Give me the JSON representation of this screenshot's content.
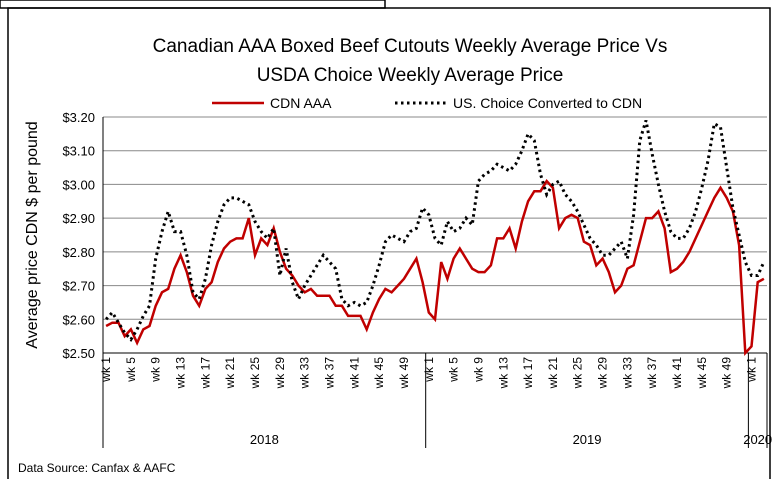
{
  "chart_data": {
    "type": "line",
    "title": [
      "Canadian AAA Boxed Beef Cutouts Weekly Average Price Vs",
      "USDA Choice Weekly Average Price"
    ],
    "y_label": "Average price CDN $ per pound",
    "source": "Data Source: Canfax & AAFC",
    "groups": [
      "2018",
      "2019",
      "2020"
    ],
    "categories": [
      "wk 1",
      null,
      null,
      null,
      "wk 5",
      null,
      null,
      null,
      "wk 9",
      null,
      null,
      null,
      "wk 13",
      null,
      null,
      null,
      "wk 17",
      null,
      null,
      null,
      "wk 21",
      null,
      null,
      null,
      "wk 25",
      null,
      null,
      null,
      "wk 29",
      null,
      null,
      null,
      "wk 33",
      null,
      null,
      null,
      "wk 37",
      null,
      null,
      null,
      "wk 41",
      null,
      null,
      null,
      "wk 45",
      null,
      null,
      null,
      "wk 49",
      null,
      null,
      null,
      "wk 1",
      null,
      null,
      null,
      "wk 5",
      null,
      null,
      null,
      "wk 9",
      null,
      null,
      null,
      "wk 13",
      null,
      null,
      null,
      "wk 17",
      null,
      null,
      null,
      "wk 21",
      null,
      null,
      null,
      "wk 25",
      null,
      null,
      null,
      "wk 29",
      null,
      null,
      null,
      "wk 33",
      null,
      null,
      null,
      "wk 37",
      null,
      null,
      null,
      "wk 41",
      null,
      null,
      null,
      "wk 45",
      null,
      null,
      null,
      "wk 49",
      null,
      null,
      null,
      "wk 1",
      null,
      null
    ],
    "series": [
      {
        "name": "CDN AAA",
        "color": "#c00000",
        "style": "solid",
        "values": [
          2.58,
          2.59,
          2.59,
          2.55,
          2.57,
          2.53,
          2.57,
          2.58,
          2.64,
          2.68,
          2.69,
          2.75,
          2.79,
          2.74,
          2.67,
          2.64,
          2.69,
          2.71,
          2.77,
          2.81,
          2.83,
          2.84,
          2.84,
          2.9,
          2.79,
          2.84,
          2.82,
          2.87,
          2.8,
          2.75,
          2.73,
          2.7,
          2.68,
          2.69,
          2.67,
          2.67,
          2.67,
          2.64,
          2.64,
          2.61,
          2.61,
          2.61,
          2.57,
          2.62,
          2.66,
          2.69,
          2.68,
          2.7,
          2.72,
          2.75,
          2.78,
          2.71,
          2.62,
          2.6,
          2.77,
          2.72,
          2.78,
          2.81,
          2.78,
          2.75,
          2.74,
          2.74,
          2.76,
          2.84,
          2.84,
          2.87,
          2.81,
          2.89,
          2.95,
          2.98,
          2.98,
          3.01,
          2.99,
          2.87,
          2.9,
          2.91,
          2.9,
          2.83,
          2.82,
          2.76,
          2.78,
          2.74,
          2.68,
          2.7,
          2.75,
          2.76,
          2.83,
          2.9,
          2.9,
          2.92,
          2.87,
          2.74,
          2.75,
          2.77,
          2.8,
          2.84,
          2.88,
          2.92,
          2.96,
          2.99,
          2.96,
          2.92,
          2.82,
          2.5,
          2.52,
          2.71,
          2.72
        ]
      },
      {
        "name": "US. Choice Converted to CDN",
        "color": "#000000",
        "style": "dotted",
        "values": [
          2.6,
          2.62,
          2.59,
          2.56,
          2.54,
          2.57,
          2.61,
          2.64,
          2.78,
          2.86,
          2.92,
          2.86,
          2.86,
          2.79,
          2.68,
          2.66,
          2.72,
          2.82,
          2.89,
          2.94,
          2.96,
          2.96,
          2.95,
          2.94,
          2.89,
          2.86,
          2.84,
          2.87,
          2.73,
          2.81,
          2.71,
          2.66,
          2.7,
          2.73,
          2.76,
          2.79,
          2.77,
          2.75,
          2.66,
          2.64,
          2.65,
          2.64,
          2.65,
          2.7,
          2.76,
          2.83,
          2.85,
          2.84,
          2.83,
          2.86,
          2.87,
          2.93,
          2.91,
          2.84,
          2.82,
          2.89,
          2.86,
          2.87,
          2.9,
          2.88,
          3.01,
          3.03,
          3.04,
          3.06,
          3.05,
          3.04,
          3.06,
          3.1,
          3.15,
          3.13,
          3.03,
          2.97,
          3.0,
          3.01,
          2.97,
          2.95,
          2.92,
          2.88,
          2.84,
          2.82,
          2.79,
          2.79,
          2.81,
          2.83,
          2.78,
          2.91,
          3.13,
          3.19,
          3.09,
          3.0,
          2.92,
          2.86,
          2.84,
          2.84,
          2.87,
          2.92,
          2.99,
          3.07,
          3.18,
          3.17,
          3.05,
          2.93,
          2.85,
          2.77,
          2.73,
          2.73,
          2.77
        ]
      }
    ],
    "ylim": [
      2.5,
      3.2
    ],
    "yticks": [
      {
        "value": 2.5,
        "label": "$2.50"
      },
      {
        "value": 2.6,
        "label": "$2.60"
      },
      {
        "value": 2.7,
        "label": "$2.70"
      },
      {
        "value": 2.8,
        "label": "$2.80"
      },
      {
        "value": 2.9,
        "label": "$2.90"
      },
      {
        "value": 3.0,
        "label": "$3.00"
      },
      {
        "value": 3.1,
        "label": "$3.10"
      },
      {
        "value": 3.2,
        "label": "$3.20"
      }
    ],
    "grid": true,
    "legend": "top"
  }
}
